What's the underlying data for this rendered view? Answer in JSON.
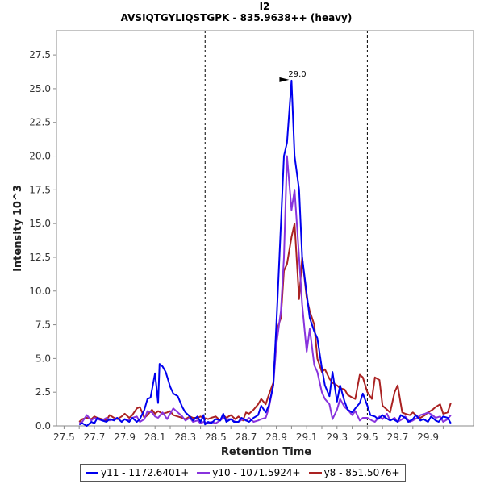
{
  "chart_data": {
    "type": "line",
    "title": "I2",
    "subtitle": "AVSIQTGYLIQSTGPK - 835.9638++ (heavy)",
    "xlabel": "Retention Time",
    "ylabel": "Intensity 10^3",
    "xlim": [
      27.45,
      30.2
    ],
    "ylim": [
      0,
      29.3
    ],
    "xticks": [
      "27.5",
      "27.6",
      "27.7",
      "27.8",
      "27.9",
      "28.0",
      "28.1",
      "28.2",
      "28.3",
      "28.4",
      "28.5",
      "28.6",
      "28.7",
      "28.8",
      "28.9",
      "29.0",
      "29.1",
      "29.2",
      "29.3",
      "29.4",
      "29.5",
      "29.6",
      "29.7",
      "29.8",
      "29.9",
      "30.0"
    ],
    "yticks": [
      "0.0",
      "2.5",
      "5.0",
      "7.5",
      "10.0",
      "12.5",
      "15.0",
      "17.5",
      "20.0",
      "22.5",
      "25.0",
      "27.5"
    ],
    "boundaries": [
      28.43,
      29.5
    ],
    "peak_label": "29.0",
    "peak": {
      "x": 29.0,
      "y": 25.6
    },
    "legend_position": "bottom",
    "series": [
      {
        "name": "y11 - 1172.6401+",
        "color": "#0000ee",
        "x": [
          27.6,
          27.62,
          27.65,
          27.68,
          27.7,
          27.72,
          27.75,
          27.78,
          27.8,
          27.83,
          27.85,
          27.88,
          27.9,
          27.93,
          27.95,
          27.98,
          28.0,
          28.03,
          28.05,
          28.07,
          28.1,
          28.12,
          28.13,
          28.15,
          28.17,
          28.2,
          28.22,
          28.25,
          28.28,
          28.3,
          28.33,
          28.35,
          28.38,
          28.4,
          28.42,
          28.43,
          28.45,
          28.47,
          28.5,
          28.53,
          28.55,
          28.57,
          28.6,
          28.62,
          28.65,
          28.67,
          28.7,
          28.72,
          28.75,
          28.78,
          28.8,
          28.83,
          28.85,
          28.88,
          28.9,
          28.92,
          28.95,
          28.97,
          29.0,
          29.02,
          29.05,
          29.07,
          29.1,
          29.12,
          29.15,
          29.17,
          29.2,
          29.22,
          29.25,
          29.27,
          29.3,
          29.32,
          29.35,
          29.37,
          29.4,
          29.42,
          29.45,
          29.47,
          29.5,
          29.52,
          29.55,
          29.57,
          29.6,
          29.62,
          29.65,
          29.67,
          29.7,
          29.72,
          29.75,
          29.77,
          29.8,
          29.82,
          29.85,
          29.87,
          29.9,
          29.92,
          29.95,
          29.97,
          30.0,
          30.03,
          30.05
        ],
        "y": [
          0.1,
          0.2,
          0.0,
          0.3,
          0.2,
          0.6,
          0.4,
          0.3,
          0.5,
          0.4,
          0.6,
          0.3,
          0.5,
          0.3,
          0.6,
          0.3,
          0.5,
          1.2,
          2.0,
          2.1,
          3.9,
          1.7,
          4.6,
          4.4,
          4.0,
          2.9,
          2.4,
          2.2,
          1.4,
          1.0,
          0.7,
          0.4,
          0.7,
          0.3,
          0.8,
          0.1,
          0.3,
          0.2,
          0.5,
          0.4,
          0.9,
          0.3,
          0.5,
          0.3,
          0.3,
          0.6,
          0.4,
          0.3,
          0.6,
          0.8,
          1.5,
          1.0,
          1.5,
          3.0,
          7.5,
          12.5,
          20.0,
          21.0,
          25.6,
          20.0,
          17.5,
          12.5,
          9.8,
          8.0,
          7.0,
          6.5,
          4.3,
          3.0,
          2.2,
          4.0,
          1.8,
          3.0,
          1.8,
          1.2,
          1.0,
          1.3,
          1.7,
          2.4,
          1.5,
          0.8,
          0.7,
          0.5,
          0.8,
          0.6,
          0.4,
          0.5,
          0.3,
          0.8,
          0.6,
          0.3,
          0.5,
          0.8,
          0.4,
          0.5,
          0.3,
          0.7,
          0.4,
          0.3,
          0.7,
          0.6,
          0.2
        ]
      },
      {
        "name": "y10 - 1071.5924+",
        "color": "#8833dd",
        "x": [
          27.6,
          27.62,
          27.65,
          27.68,
          27.7,
          27.72,
          27.75,
          27.78,
          27.8,
          27.83,
          27.85,
          27.88,
          27.9,
          27.93,
          27.95,
          27.98,
          28.0,
          28.03,
          28.05,
          28.08,
          28.1,
          28.12,
          28.15,
          28.18,
          28.2,
          28.22,
          28.25,
          28.28,
          28.3,
          28.33,
          28.35,
          28.38,
          28.4,
          28.42,
          28.45,
          28.47,
          28.5,
          28.53,
          28.55,
          28.57,
          28.6,
          28.63,
          28.65,
          28.68,
          28.7,
          28.72,
          28.75,
          28.78,
          28.8,
          28.83,
          28.85,
          28.88,
          28.9,
          28.93,
          28.95,
          28.97,
          29.0,
          29.02,
          29.05,
          29.07,
          29.1,
          29.12,
          29.15,
          29.17,
          29.2,
          29.22,
          29.25,
          29.27,
          29.3,
          29.32,
          29.35,
          29.37,
          29.4,
          29.42,
          29.45,
          29.47,
          29.5,
          29.53,
          29.55,
          29.58,
          29.6,
          29.63,
          29.65,
          29.68,
          29.7,
          29.73,
          29.75,
          29.78,
          29.8,
          29.83,
          29.85,
          29.88,
          29.9,
          29.93,
          29.95,
          29.98,
          30.0,
          30.03,
          30.05
        ],
        "y": [
          0.2,
          0.3,
          0.8,
          0.4,
          0.6,
          0.5,
          0.4,
          0.6,
          0.4,
          0.5,
          0.6,
          0.3,
          0.5,
          0.4,
          0.6,
          0.7,
          0.3,
          0.5,
          1.1,
          1.0,
          0.7,
          0.6,
          1.0,
          0.5,
          0.9,
          1.3,
          1.0,
          0.7,
          0.4,
          0.6,
          0.3,
          0.4,
          0.2,
          0.3,
          0.2,
          0.3,
          0.2,
          0.4,
          0.6,
          0.5,
          0.5,
          0.3,
          0.3,
          0.5,
          0.4,
          0.6,
          0.3,
          0.4,
          0.5,
          0.6,
          1.3,
          3.0,
          6.0,
          8.5,
          12.5,
          20.0,
          16.0,
          17.5,
          12.5,
          9.0,
          5.5,
          7.2,
          4.5,
          4.0,
          2.5,
          2.0,
          1.6,
          0.5,
          1.2,
          2.0,
          1.4,
          1.2,
          0.8,
          1.1,
          0.4,
          0.6,
          0.6,
          0.4,
          0.3,
          0.7,
          0.5,
          0.9,
          0.4,
          0.6,
          0.3,
          0.5,
          0.7,
          0.3,
          0.4,
          0.6,
          0.8,
          0.9,
          1.0,
          0.8,
          0.6,
          0.7,
          0.3,
          0.5,
          0.8
        ]
      },
      {
        "name": "y8 - 851.5076+",
        "color": "#aa2222",
        "x": [
          27.6,
          27.62,
          27.65,
          27.68,
          27.7,
          27.72,
          27.75,
          27.78,
          27.8,
          27.83,
          27.85,
          27.88,
          27.9,
          27.93,
          27.95,
          27.98,
          28.0,
          28.03,
          28.05,
          28.08,
          28.1,
          28.12,
          28.15,
          28.18,
          28.2,
          28.22,
          28.25,
          28.28,
          28.3,
          28.33,
          28.35,
          28.38,
          28.4,
          28.42,
          28.45,
          28.47,
          28.5,
          28.53,
          28.55,
          28.57,
          28.6,
          28.63,
          28.65,
          28.68,
          28.7,
          28.72,
          28.75,
          28.78,
          28.8,
          28.83,
          28.85,
          28.88,
          28.9,
          28.93,
          28.95,
          28.97,
          29.0,
          29.02,
          29.05,
          29.07,
          29.1,
          29.12,
          29.15,
          29.17,
          29.2,
          29.22,
          29.25,
          29.27,
          29.3,
          29.32,
          29.35,
          29.37,
          29.4,
          29.42,
          29.45,
          29.47,
          29.5,
          29.53,
          29.55,
          29.58,
          29.6,
          29.63,
          29.65,
          29.68,
          29.7,
          29.73,
          29.75,
          29.78,
          29.8,
          29.83,
          29.85,
          29.88,
          29.9,
          29.93,
          29.95,
          29.98,
          30.0,
          30.03,
          30.05
        ],
        "y": [
          0.3,
          0.5,
          0.6,
          0.5,
          0.7,
          0.6,
          0.5,
          0.4,
          0.8,
          0.6,
          0.5,
          0.7,
          0.9,
          0.6,
          0.8,
          1.3,
          1.4,
          0.6,
          0.8,
          1.2,
          0.9,
          1.1,
          0.9,
          1.0,
          1.1,
          0.8,
          0.7,
          0.6,
          0.5,
          0.7,
          0.6,
          0.6,
          0.7,
          0.6,
          0.5,
          0.6,
          0.7,
          0.4,
          0.8,
          0.6,
          0.8,
          0.5,
          0.7,
          0.4,
          1.0,
          0.9,
          1.2,
          1.6,
          2.0,
          1.6,
          2.3,
          3.2,
          7.0,
          8.0,
          11.5,
          12.0,
          14.0,
          15.0,
          9.4,
          12.5,
          9.5,
          8.5,
          7.5,
          5.0,
          4.0,
          4.2,
          3.5,
          3.2,
          3.0,
          2.8,
          2.7,
          2.3,
          2.1,
          2.0,
          3.8,
          3.6,
          2.5,
          2.0,
          3.6,
          3.4,
          1.5,
          1.2,
          1.0,
          2.5,
          3.0,
          1.0,
          0.9,
          0.8,
          1.0,
          0.7,
          0.6,
          0.8,
          1.0,
          1.2,
          1.4,
          1.6,
          0.9,
          1.0,
          1.7
        ]
      }
    ]
  }
}
